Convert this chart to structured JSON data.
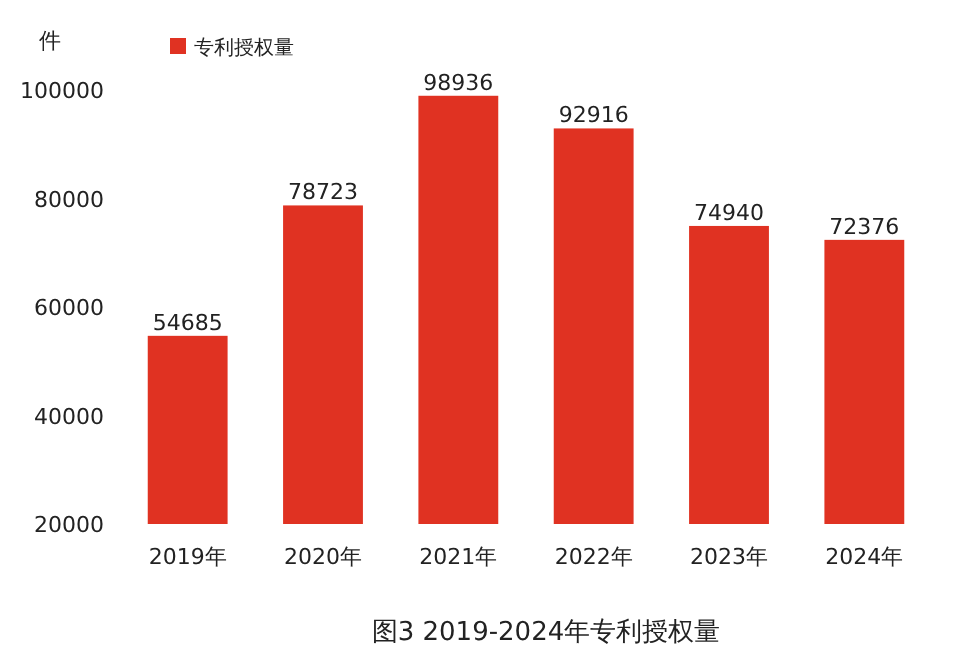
{
  "chart_data": {
    "type": "bar",
    "title": "图3 2019-2024年专利授权量",
    "ylabel": "件",
    "categories": [
      "2019年",
      "2020年",
      "2021年",
      "2022年",
      "2023年",
      "2024年"
    ],
    "series": [
      {
        "name": "专利授权量",
        "color": "#e03222",
        "values": [
          54685,
          78723,
          98936,
          92916,
          74940,
          72376
        ]
      }
    ],
    "ylim": [
      20000,
      100000
    ],
    "yticks": [
      20000,
      40000,
      60000,
      80000,
      100000
    ],
    "data_labels": true,
    "legend": "top left",
    "grid": false
  }
}
